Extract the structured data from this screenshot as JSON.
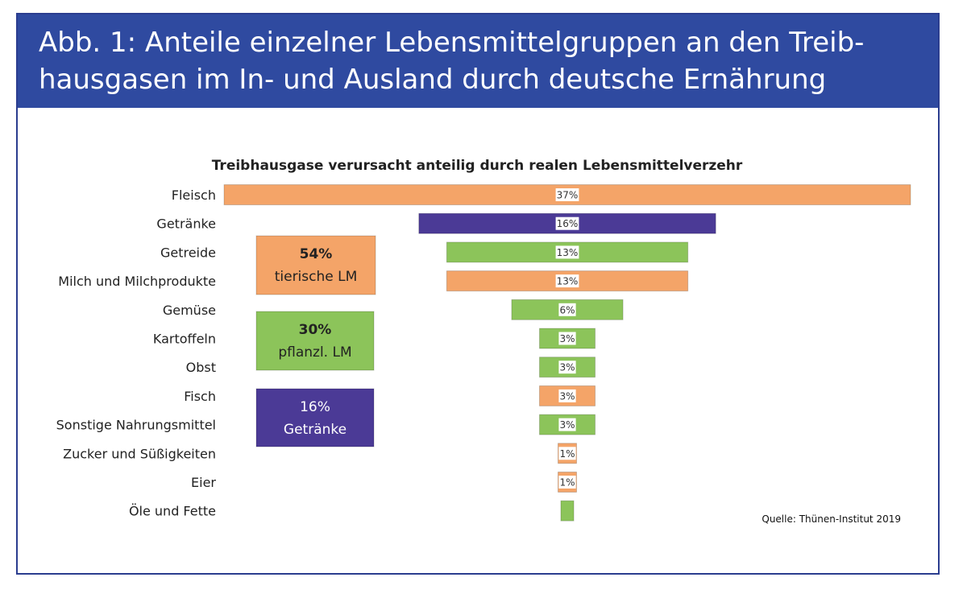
{
  "header": {
    "line1": "Abb. 1: Anteile einzelner Lebensmittelgruppen an den Treib-",
    "line2": "hausgasen im In- und Ausland durch deutsche Ernährung"
  },
  "colors": {
    "banner": "#2f4aa0",
    "frame": "#2b3d8f",
    "animal": "#f4a468",
    "plant": "#8cc45a",
    "drinks": "#4b3a96"
  },
  "legend_boxes": [
    {
      "value": "54%",
      "label": "tierische LM",
      "group": "animal"
    },
    {
      "value": "30%",
      "label": "pflanzl. LM",
      "group": "plant"
    },
    {
      "value": "16%",
      "label": "Getränke",
      "group": "drinks"
    }
  ],
  "source": "Quelle: Thünen-Institut 2019",
  "chart_data": {
    "type": "bar",
    "orientation": "horizontal",
    "layout": "centered-funnel",
    "title": "Treibhausgase verursacht anteilig durch realen Lebensmittelverzehr",
    "categories": [
      "Fleisch",
      "Getränke",
      "Getreide",
      "Milch und Milchprodukte",
      "Gemüse",
      "Kartoffeln",
      "Obst",
      "Fisch",
      "Sonstige Nahrungsmittel",
      "Zucker und Süßigkeiten",
      "Eier",
      "Öle und Fette"
    ],
    "values": [
      37,
      16,
      13,
      13,
      6,
      3,
      3,
      3,
      3,
      1,
      1,
      0.7
    ],
    "value_labels": [
      "37%",
      "16%",
      "13%",
      "13%",
      "6%",
      "3%",
      "3%",
      "3%",
      "3%",
      "1%",
      "1%",
      ""
    ],
    "groups": [
      "animal",
      "drinks",
      "plant",
      "animal",
      "plant",
      "plant",
      "plant",
      "animal",
      "plant",
      "animal",
      "animal",
      "plant"
    ],
    "unit": "%",
    "grid": false,
    "legend": "left"
  }
}
